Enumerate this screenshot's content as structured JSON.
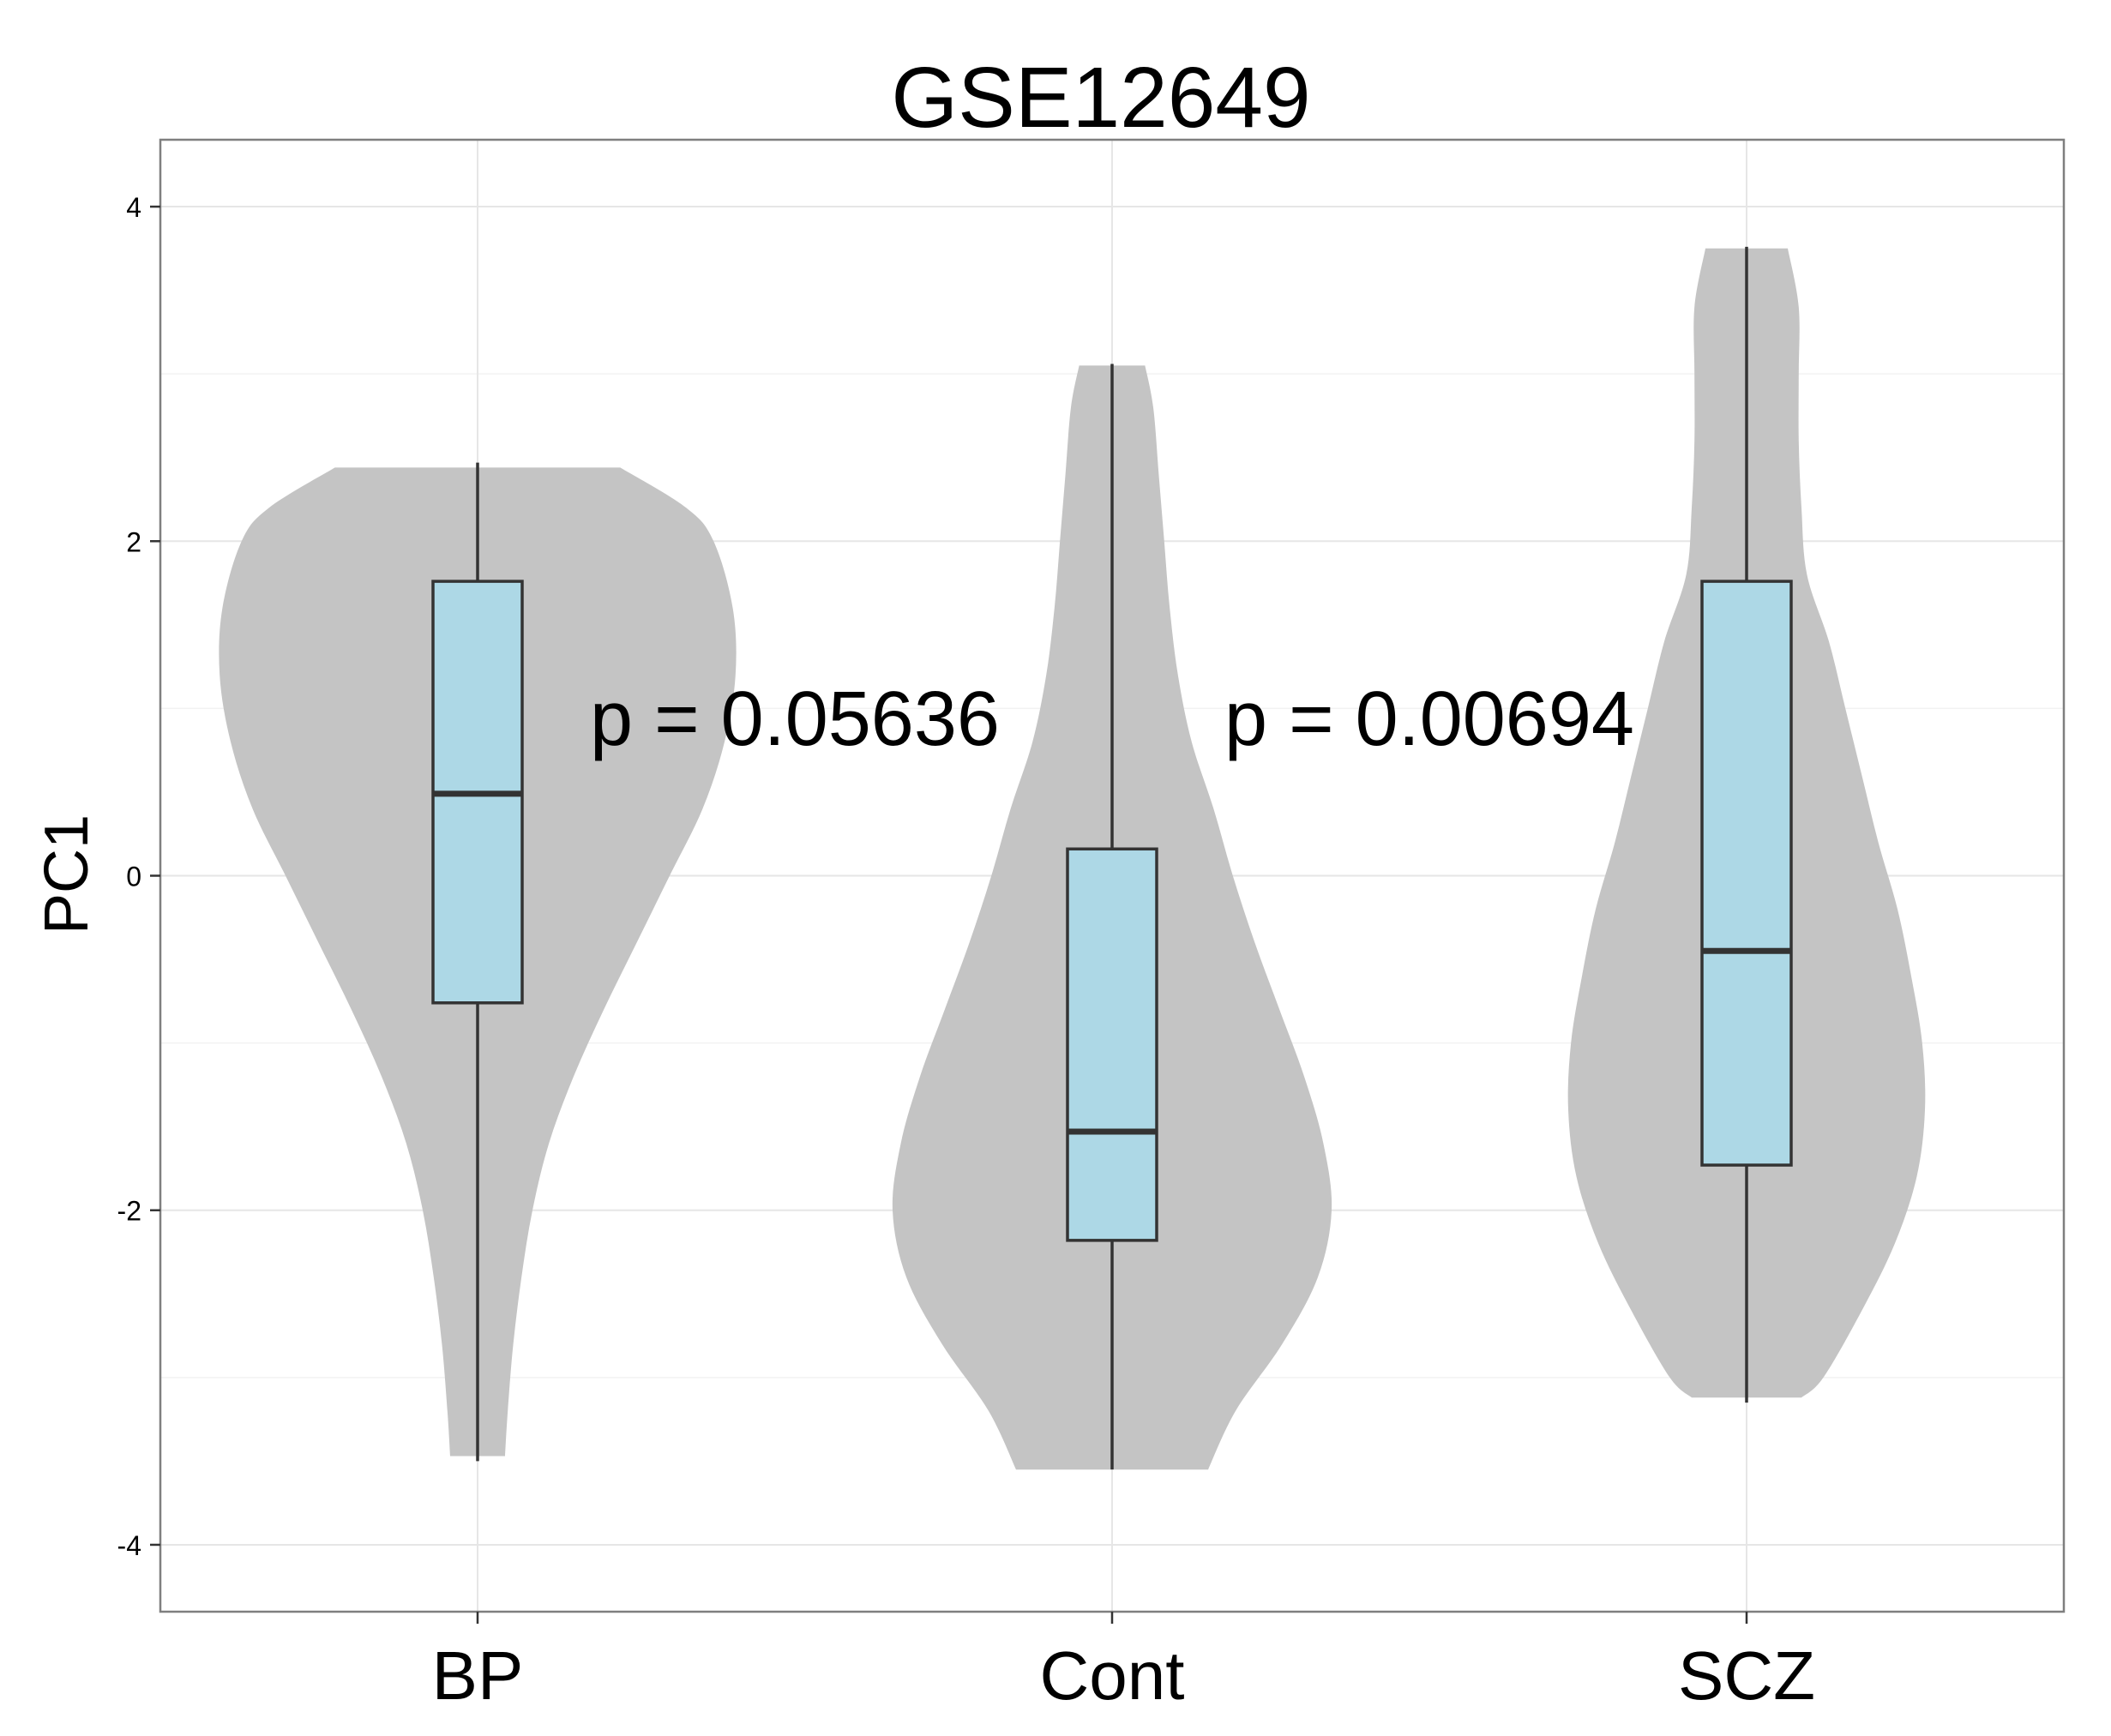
{
  "chart_data": {
    "type": "violin",
    "title": "GSE12649",
    "xlabel": "",
    "ylabel": "PC1",
    "ylim": [
      -4.4,
      4.4
    ],
    "yticks": [
      -4,
      -2,
      0,
      2,
      4
    ],
    "ytick_labels": [
      "-4",
      "-2",
      "0",
      "2",
      "4"
    ],
    "grid": true,
    "legend": "none",
    "categories": [
      "BP",
      "Cont",
      "SCZ"
    ],
    "groups": [
      {
        "name": "BP",
        "box": {
          "min": -3.5,
          "q1": -0.76,
          "median": 0.49,
          "q3": 1.76,
          "max": 2.47
        },
        "violin": {
          "y": [
            2.44,
            2.2,
            2.0,
            1.6,
            1.2,
            0.8,
            0.4,
            0.0,
            -0.4,
            -0.8,
            -1.2,
            -1.6,
            -2.0,
            -2.4,
            -2.8,
            -3.2,
            -3.47
          ],
          "density": [
            0.52,
            0.76,
            0.86,
            0.93,
            0.94,
            0.9,
            0.82,
            0.7,
            0.58,
            0.46,
            0.35,
            0.26,
            0.2,
            0.16,
            0.13,
            0.11,
            0.1
          ]
        }
      },
      {
        "name": "Cont",
        "box": {
          "min": -3.55,
          "q1": -2.18,
          "median": -1.53,
          "q3": 0.16,
          "max": 3.06
        },
        "violin": {
          "y": [
            3.05,
            2.8,
            2.4,
            2.0,
            1.6,
            1.2,
            0.8,
            0.4,
            0.0,
            -0.4,
            -0.8,
            -1.2,
            -1.6,
            -2.0,
            -2.4,
            -2.8,
            -3.2,
            -3.55
          ],
          "density": [
            0.12,
            0.15,
            0.17,
            0.19,
            0.21,
            0.24,
            0.29,
            0.37,
            0.44,
            0.52,
            0.61,
            0.7,
            0.77,
            0.8,
            0.75,
            0.62,
            0.45,
            0.35
          ]
        }
      },
      {
        "name": "SCZ",
        "box": {
          "min": -3.15,
          "q1": -1.73,
          "median": -0.45,
          "q3": 1.76,
          "max": 3.76
        },
        "violin": {
          "y": [
            3.75,
            3.4,
            3.0,
            2.6,
            2.2,
            1.8,
            1.4,
            1.0,
            0.6,
            0.2,
            -0.2,
            -0.6,
            -1.0,
            -1.4,
            -1.8,
            -2.2,
            -2.6,
            -3.0,
            -3.12
          ],
          "density": [
            0.15,
            0.19,
            0.19,
            0.19,
            0.2,
            0.22,
            0.3,
            0.36,
            0.42,
            0.48,
            0.55,
            0.6,
            0.64,
            0.65,
            0.62,
            0.54,
            0.42,
            0.28,
            0.2
          ]
        }
      }
    ],
    "annotations": [
      {
        "text": "p = 0.05636",
        "x_between": [
          "BP",
          "Cont"
        ],
        "y": 0.95
      },
      {
        "text": "p = 0.00694",
        "x_between": [
          "Cont",
          "SCZ"
        ],
        "y": 0.95
      }
    ],
    "colors": {
      "violin": "#c4c4c4",
      "box": "#add8e6",
      "box_line": "#333333",
      "grid_major": "#e6e6e6",
      "grid_minor": "#f2f2f2",
      "panel_border": "#7f7f7f"
    }
  }
}
